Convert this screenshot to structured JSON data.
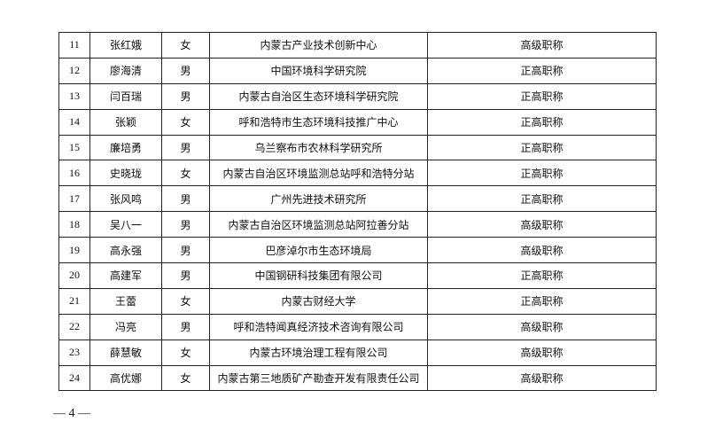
{
  "table": {
    "rows": [
      [
        "11",
        "张红娥",
        "女",
        "内蒙古产业技术创新中心",
        "高级职称"
      ],
      [
        "12",
        "廖海清",
        "男",
        "中国环境科学研究院",
        "正高职称"
      ],
      [
        "13",
        "闫百瑞",
        "男",
        "内蒙古自治区生态环境科学研究院",
        "正高职称"
      ],
      [
        "14",
        "张颖",
        "女",
        "呼和浩特市生态环境科技推广中心",
        "正高职称"
      ],
      [
        "15",
        "廉培勇",
        "男",
        "乌兰察布市农林科学研究所",
        "正高职称"
      ],
      [
        "16",
        "史晓珑",
        "女",
        "内蒙古自治区环境监测总站呼和浩特分站",
        "正高职称"
      ],
      [
        "17",
        "张风鸣",
        "男",
        "广州先进技术研究所",
        "正高职称"
      ],
      [
        "18",
        "吴八一",
        "男",
        "内蒙古自治区环境监测总站阿拉善分站",
        "高级职称"
      ],
      [
        "19",
        "高永强",
        "男",
        "巴彦淖尔市生态环境局",
        "高级职称"
      ],
      [
        "20",
        "高建军",
        "男",
        "中国钢研科技集团有限公司",
        "正高职称"
      ],
      [
        "21",
        "王蕾",
        "女",
        "内蒙古财经大学",
        "正高职称"
      ],
      [
        "22",
        "冯亮",
        "男",
        "呼和浩特闻真经济技术咨询有限公司",
        "高级职称"
      ],
      [
        "23",
        "薛慧敏",
        "女",
        "内蒙古环境治理工程有限公司",
        "高级职称"
      ],
      [
        "24",
        "高优娜",
        "女",
        "内蒙古第三地质矿产勘查开发有限责任公司",
        "高级职称"
      ]
    ]
  },
  "footer": {
    "page_number": "— 4 —"
  }
}
